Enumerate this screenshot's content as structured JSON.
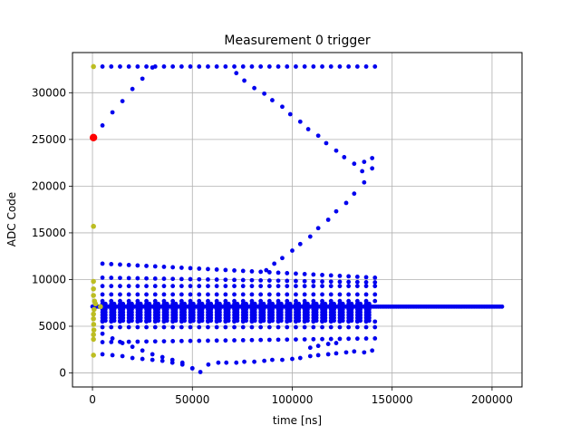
{
  "chart_data": {
    "type": "scatter",
    "title": "Measurement 0 trigger",
    "xlabel": "time [ns]",
    "ylabel": "ADC Code",
    "xlim": [
      -10000,
      215000
    ],
    "ylim": [
      -1500,
      34300
    ],
    "grid": true,
    "xticks": [
      0,
      50000,
      100000,
      150000,
      200000
    ],
    "yticks": [
      0,
      5000,
      10000,
      15000,
      20000,
      25000,
      30000
    ],
    "xtick_labels": [
      "0",
      "50000",
      "100000",
      "150000",
      "200000"
    ],
    "ytick_labels": [
      "0",
      "5000",
      "10000",
      "15000",
      "20000",
      "25000",
      "30000"
    ],
    "colors": {
      "main": "#0000ee",
      "pretrigger": "#bcbd22",
      "trigger": "#ff0000",
      "grid": "#b0b0b0"
    },
    "series": [
      {
        "color": "#0000ee",
        "description_rows": [
          {
            "y": 32800,
            "x_start": 5000,
            "x_end": 140000,
            "step": 4400
          },
          {
            "y": 11700,
            "x_start": 5000,
            "x_end": 140000,
            "step": 4400,
            "y_end": 10200
          },
          {
            "y": 10200,
            "x_start": 5000,
            "x_end": 140000,
            "step": 4400,
            "y_end": 9700
          },
          {
            "y": 9300,
            "x_start": 5000,
            "x_end": 140000,
            "step": 4400
          },
          {
            "y": 8400,
            "x_start": 5000,
            "x_end": 140000,
            "step": 4400
          },
          {
            "y": 7700,
            "x_start": 5000,
            "x_end": 140000,
            "step": 4400
          },
          {
            "y": 5500,
            "x_start": 5000,
            "x_end": 140000,
            "step": 4400
          },
          {
            "y": 4900,
            "x_start": 5000,
            "x_end": 140000,
            "step": 4400
          },
          {
            "y": 3300,
            "x_start": 5000,
            "x_end": 140000,
            "step": 4400,
            "y_end": 3700
          }
        ]
      }
    ],
    "baseline": {
      "y": 7100,
      "x_start": 0,
      "x_end": 205000
    },
    "trigger_point": {
      "x": 500,
      "y": 25200
    },
    "pretrigger_points": [
      {
        "x": 500,
        "y": 32800
      },
      {
        "x": 500,
        "y": 15700
      },
      {
        "x": 500,
        "y": 9800
      },
      {
        "x": 500,
        "y": 9000
      },
      {
        "x": 500,
        "y": 8300
      },
      {
        "x": 1000,
        "y": 7700
      },
      {
        "x": 1500,
        "y": 7400
      },
      {
        "x": 800,
        "y": 6800
      },
      {
        "x": 500,
        "y": 6300
      },
      {
        "x": 500,
        "y": 5800
      },
      {
        "x": 600,
        "y": 5200
      },
      {
        "x": 700,
        "y": 4600
      },
      {
        "x": 500,
        "y": 4100
      },
      {
        "x": 500,
        "y": 3600
      },
      {
        "x": 500,
        "y": 1900
      },
      {
        "x": 4000,
        "y": 7100
      }
    ]
  }
}
